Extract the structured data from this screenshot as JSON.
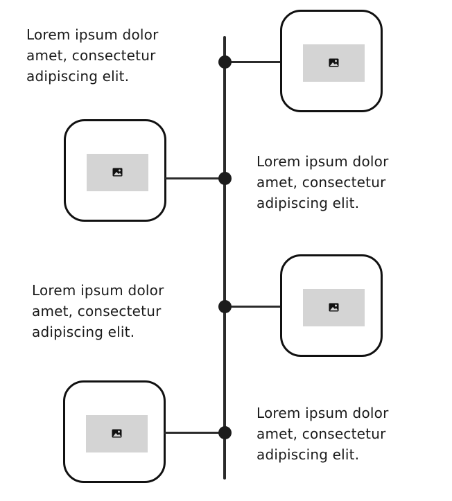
{
  "timeline": {
    "items": [
      {
        "text_lines": [
          "Lorem ipsum dolor",
          "amet, consectetur",
          "adipiscing elit."
        ],
        "image_icon": "image-icon"
      },
      {
        "text_lines": [
          "Lorem ipsum dolor",
          "amet, consectetur",
          "adipiscing elit."
        ],
        "image_icon": "image-icon"
      },
      {
        "text_lines": [
          "Lorem ipsum dolor",
          "amet, consectetur",
          "adipiscing elit."
        ],
        "image_icon": "image-icon"
      },
      {
        "text_lines": [
          "Lorem ipsum dolor",
          "amet, consectetur",
          "adipiscing elit."
        ],
        "image_icon": "image-icon"
      }
    ]
  },
  "colors": {
    "line": "#2b2b2b",
    "card_border": "#111111",
    "placeholder": "#d4d4d4",
    "text": "#1a1a1a"
  }
}
